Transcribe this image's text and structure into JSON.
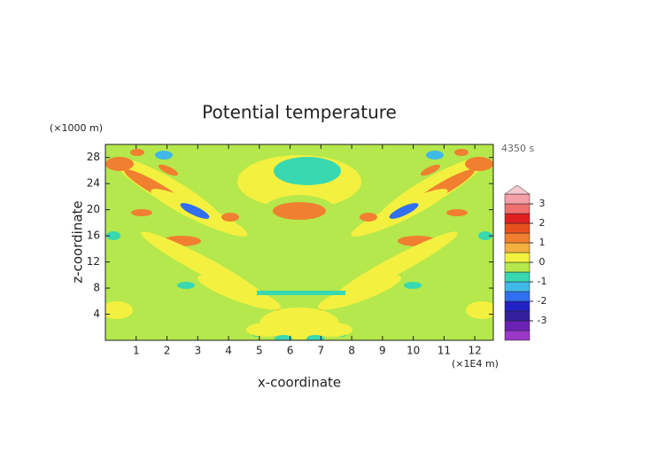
{
  "chart_data": {
    "type": "contour",
    "title": "Potential temperature",
    "x_label": "x-coordinate",
    "y_label": "z-coordinate",
    "x_unit": "(×1E4 m)",
    "y_unit": "(×1000 m)",
    "time_label": "4350 s",
    "xlim": [
      0,
      12.6
    ],
    "xticks": [
      1,
      2,
      3,
      4,
      5,
      6,
      7,
      8,
      9,
      10,
      11,
      12
    ],
    "ylim": [
      0,
      30
    ],
    "yticks": [
      4,
      8,
      12,
      16,
      20,
      24,
      28
    ],
    "colorbar": {
      "lim": [
        -4,
        4
      ],
      "ticks": [
        3,
        2,
        1,
        0,
        -1,
        -2,
        -3
      ],
      "levels": [
        -4,
        -3.5,
        -3,
        -2.5,
        -2,
        -1.5,
        -1,
        -0.5,
        0,
        0.5,
        1,
        1.5,
        2,
        2.5,
        3,
        3.5
      ],
      "colors": [
        "#9a38c8",
        "#6a22b4",
        "#34209e",
        "#2222c4",
        "#3070f0",
        "#40b8e8",
        "#38d8b0",
        "#b4e84c",
        "#f4f040",
        "#f4b040",
        "#f08030",
        "#e85020",
        "#e02020",
        "#f07070",
        "#f4a0a8"
      ],
      "extend_color": "#f8c8d0"
    }
  }
}
